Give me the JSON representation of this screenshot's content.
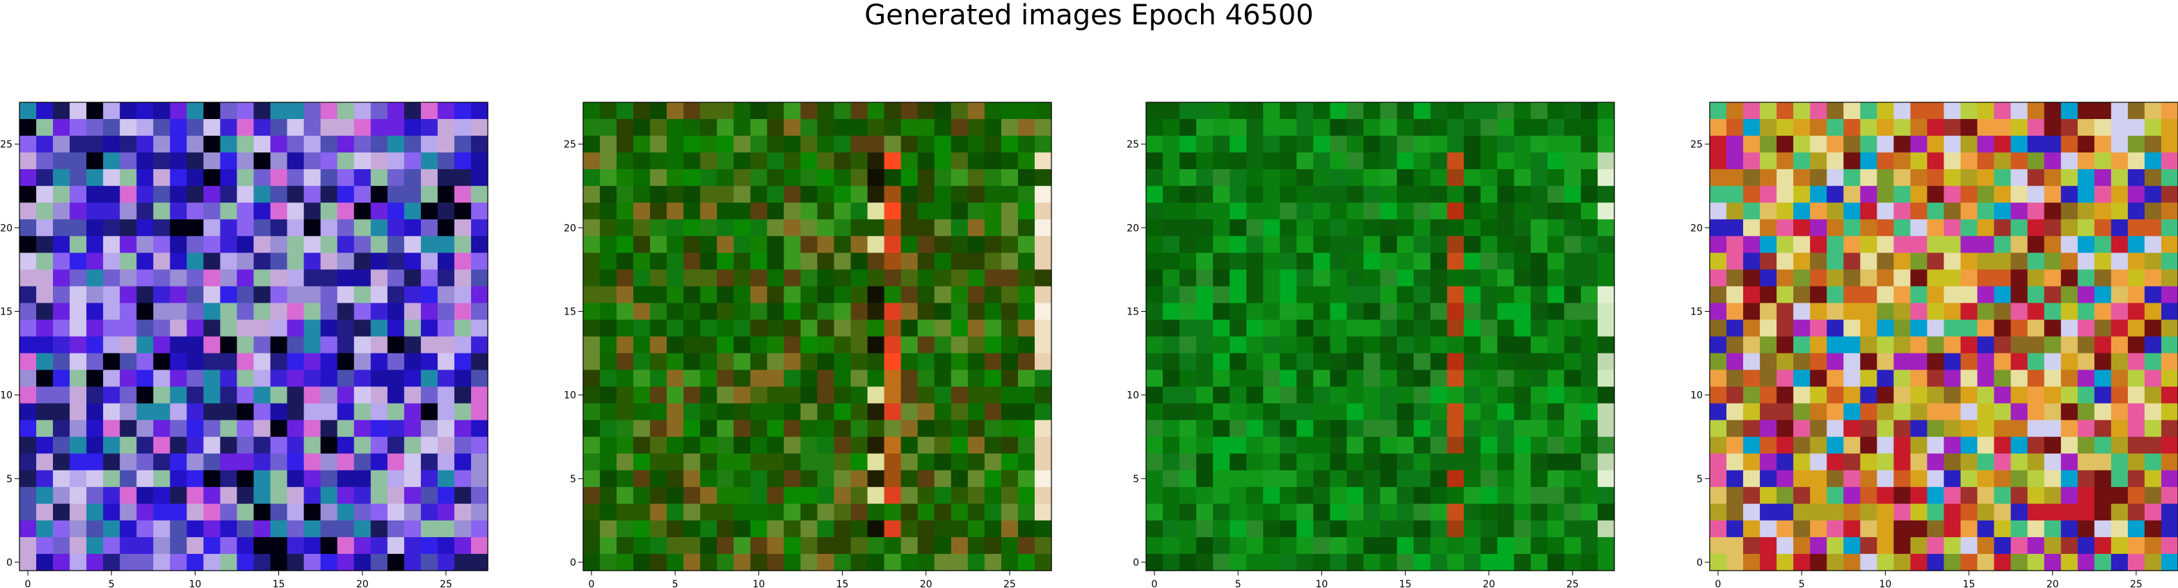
{
  "title": "Generated images Epoch 46500",
  "chart_data": {
    "type": "heatmap",
    "title": "Generated images Epoch 46500",
    "grid": false,
    "panels": [
      {
        "name": "",
        "rows": 28,
        "cols": 28,
        "xlim": [
          -0.5,
          27.5
        ],
        "ylim": [
          27.5,
          -0.5
        ],
        "xticks": [
          "0",
          "5",
          "10",
          "15",
          "20",
          "25"
        ],
        "yticks": [
          "0",
          "5",
          "10",
          "15",
          "20",
          "25"
        ],
        "palette": [
          "#9a8fd6",
          "#6f5fd0",
          "#3a21d8",
          "#2412c8",
          "#1a0fa5",
          "#b8a8ee",
          "#d1c6ef",
          "#8a63f0",
          "#6a21e0",
          "#3020ea",
          "#221c85",
          "#4b4fb0",
          "#1e8aa8",
          "#1a1a5a",
          "#000010",
          "#d96ad3",
          "#8fc0a0",
          "#c7a9d9"
        ]
      },
      {
        "name": "",
        "rows": 28,
        "cols": 28,
        "xlim": [
          -0.5,
          27.5
        ],
        "ylim": [
          27.5,
          -0.5
        ],
        "xticks": [
          "0",
          "5",
          "10",
          "15",
          "20",
          "25"
        ],
        "yticks": [
          "0",
          "5",
          "10",
          "15",
          "20",
          "25"
        ],
        "palette": [
          "#1f7f10",
          "#0a6f00",
          "#0a8a00",
          "#2a5a00",
          "#4a6a10",
          "#5a4010",
          "#0b5500",
          "#3a9a20",
          "#2c4200",
          "#106600",
          "#6a8a30",
          "#0f7a0f",
          "#8a6a20",
          "#1a5200",
          "#147f00",
          "#0b4a00"
        ],
        "accents": {
          "col18": [
            "#e04020",
            "#c0701a",
            "#ff4a20",
            "#a05010"
          ],
          "col17": [
            "#101000",
            "#e0e0a0",
            "#202000"
          ],
          "col27": [
            "#f0e0c0",
            "#f8f0e0",
            "#e8d0b0"
          ]
        }
      },
      {
        "name": "",
        "rows": 28,
        "cols": 28,
        "xlim": [
          -0.5,
          27.5
        ],
        "ylim": [
          27.5,
          -0.5
        ],
        "xticks": [
          "0",
          "5",
          "10",
          "15",
          "20",
          "25"
        ],
        "yticks": [
          "0",
          "5",
          "10",
          "15",
          "20",
          "25"
        ],
        "palette": [
          "#0a7f10",
          "#087008",
          "#0c8a14",
          "#066206",
          "#109a18",
          "#0a5a0a",
          "#1aa020",
          "#074f07",
          "#0d7a1a",
          "#0b6a10",
          "#2a8a2a",
          "#00aa22"
        ],
        "accents": {
          "col18": [
            "#b83010",
            "#a04010",
            "#c85018"
          ],
          "col27": [
            "#d0e8c0",
            "#c0d8b0",
            "#e0f0d0"
          ]
        }
      },
      {
        "name": "",
        "rows": 28,
        "cols": 28,
        "xlim": [
          -0.5,
          27.5
        ],
        "ylim": [
          27.5,
          -0.5
        ],
        "xticks": [
          "0",
          "5",
          "10",
          "15",
          "20",
          "25"
        ],
        "yticks": [
          "0",
          "5",
          "10",
          "15",
          "20",
          "25"
        ],
        "palette": [
          "#d9a21a",
          "#c8781a",
          "#b0a020",
          "#e0c060",
          "#d05a20",
          "#a0302a",
          "#e8e0a0",
          "#c81a2a",
          "#8a6a20",
          "#f0a040",
          "#7a9a2a",
          "#c9c020",
          "#e85aa0",
          "#2a20c0",
          "#00a0d0",
          "#a020c0",
          "#b8d040",
          "#40c080",
          "#701010",
          "#d0d0f0"
        ]
      }
    ]
  }
}
